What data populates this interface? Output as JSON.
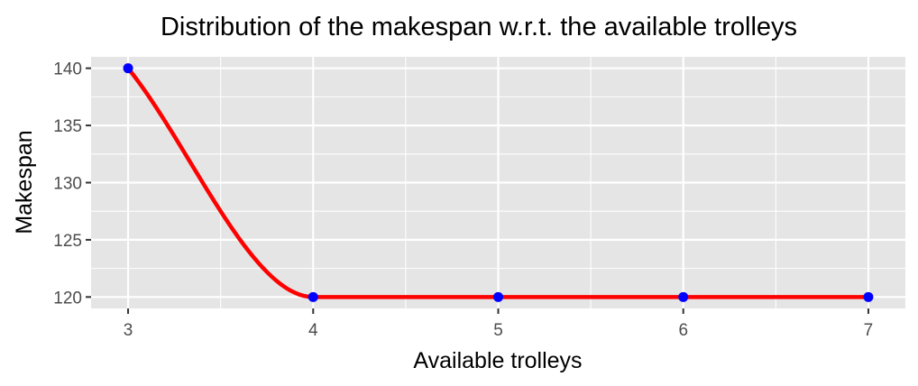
{
  "chart_data": {
    "type": "line",
    "title": "Distribution of the makespan w.r.t. the available trolleys",
    "xlabel": "Available trolleys",
    "ylabel": "Makespan",
    "x": [
      3,
      4,
      5,
      6,
      7
    ],
    "xlim": [
      2.8,
      7.2
    ],
    "ylim": [
      119.0,
      141.0
    ],
    "x_ticks": [
      3,
      4,
      5,
      6,
      7
    ],
    "y_ticks": [
      120,
      125,
      130,
      135,
      140
    ],
    "grid": true,
    "series": [
      {
        "values": [
          140,
          120,
          120,
          120,
          120
        ],
        "line_color": "#ff0000",
        "point_color": "#0000ff",
        "smooth": true
      }
    ]
  },
  "colors": {
    "panel_bg": "#e5e5e5",
    "grid": "#ffffff"
  }
}
